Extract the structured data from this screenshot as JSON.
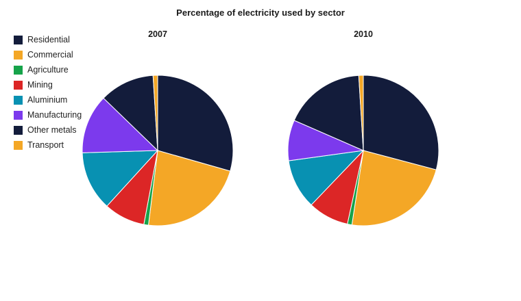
{
  "chart_data": {
    "type": "pie",
    "title": "Percentage of electricity used by sector",
    "legend_position": "top-left",
    "categories": [
      "Residential",
      "Commercial",
      "Agriculture",
      "Mining",
      "Aluminium",
      "Manufacturing",
      "Other metals",
      "Transport"
    ],
    "colors": [
      "#131c3b",
      "#f4a726",
      "#16a34a",
      "#dc2626",
      "#0891b2",
      "#7c3aed",
      "#131c3b",
      "#f4a726"
    ],
    "pies": [
      {
        "label": "2007",
        "values": [
          30,
          23,
          1,
          9,
          13,
          13,
          12,
          1
        ]
      },
      {
        "label": "2010",
        "values": [
          30,
          24,
          1,
          9,
          11,
          9,
          18,
          1
        ]
      }
    ]
  }
}
